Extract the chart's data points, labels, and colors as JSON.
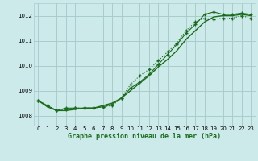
{
  "title": "Graphe pression niveau de la mer (hPa)",
  "background_color": "#cceaea",
  "grid_color": "#a8cccc",
  "line_color": "#1a6b1a",
  "xlim": [
    -0.5,
    23.5
  ],
  "ylim": [
    1007.6,
    1012.5
  ],
  "yticks": [
    1008,
    1009,
    1010,
    1011,
    1012
  ],
  "xtick_labels": [
    "0",
    "1",
    "2",
    "3",
    "4",
    "5",
    "6",
    "7",
    "8",
    "9",
    "10",
    "11",
    "12",
    "13",
    "14",
    "15",
    "16",
    "17",
    "18",
    "19",
    "20",
    "21",
    "22",
    "23"
  ],
  "series1": [
    1008.6,
    1008.4,
    1008.2,
    1008.25,
    1008.3,
    1008.3,
    1008.3,
    1008.35,
    1008.4,
    1008.7,
    1009.25,
    1009.6,
    1009.85,
    1010.2,
    1010.55,
    1010.9,
    1011.4,
    1011.75,
    1011.9,
    1011.85,
    1011.9,
    1011.9,
    1012.0,
    1011.9
  ],
  "series2": [
    1008.6,
    1008.35,
    1008.2,
    1008.2,
    1008.25,
    1008.3,
    1008.3,
    1008.4,
    1008.5,
    1008.7,
    1009.0,
    1009.3,
    1009.6,
    1009.95,
    1010.25,
    1010.6,
    1011.05,
    1011.4,
    1011.75,
    1011.95,
    1012.0,
    1012.0,
    1012.05,
    1012.0
  ],
  "series3": [
    1008.6,
    1008.4,
    1008.2,
    1008.3,
    1008.3,
    1008.3,
    1008.3,
    1008.35,
    1008.45,
    1008.7,
    1009.1,
    1009.35,
    1009.65,
    1010.05,
    1010.45,
    1010.85,
    1011.3,
    1011.65,
    1012.05,
    1012.15,
    1012.05,
    1012.05,
    1012.1,
    1012.05
  ]
}
